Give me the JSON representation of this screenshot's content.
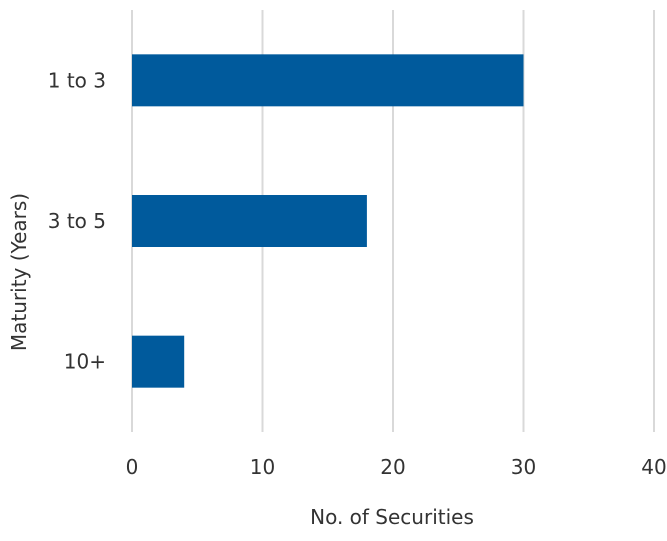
{
  "chart_data": {
    "type": "bar",
    "orientation": "horizontal",
    "categories": [
      "1 to 3",
      "3 to 5",
      "10+"
    ],
    "values": [
      30,
      18,
      4
    ],
    "xlabel": "No. of Securities",
    "ylabel": "Maturity (Years)",
    "xlim": [
      0,
      40
    ],
    "x_ticks": [
      0,
      10,
      20,
      30,
      40
    ],
    "x_tick_labels": [
      "0",
      "10",
      "20",
      "30",
      "40"
    ],
    "grid": "vertical",
    "legend": "none",
    "bar_color": "#005a9c",
    "grid_color": "#d9d9d9"
  }
}
